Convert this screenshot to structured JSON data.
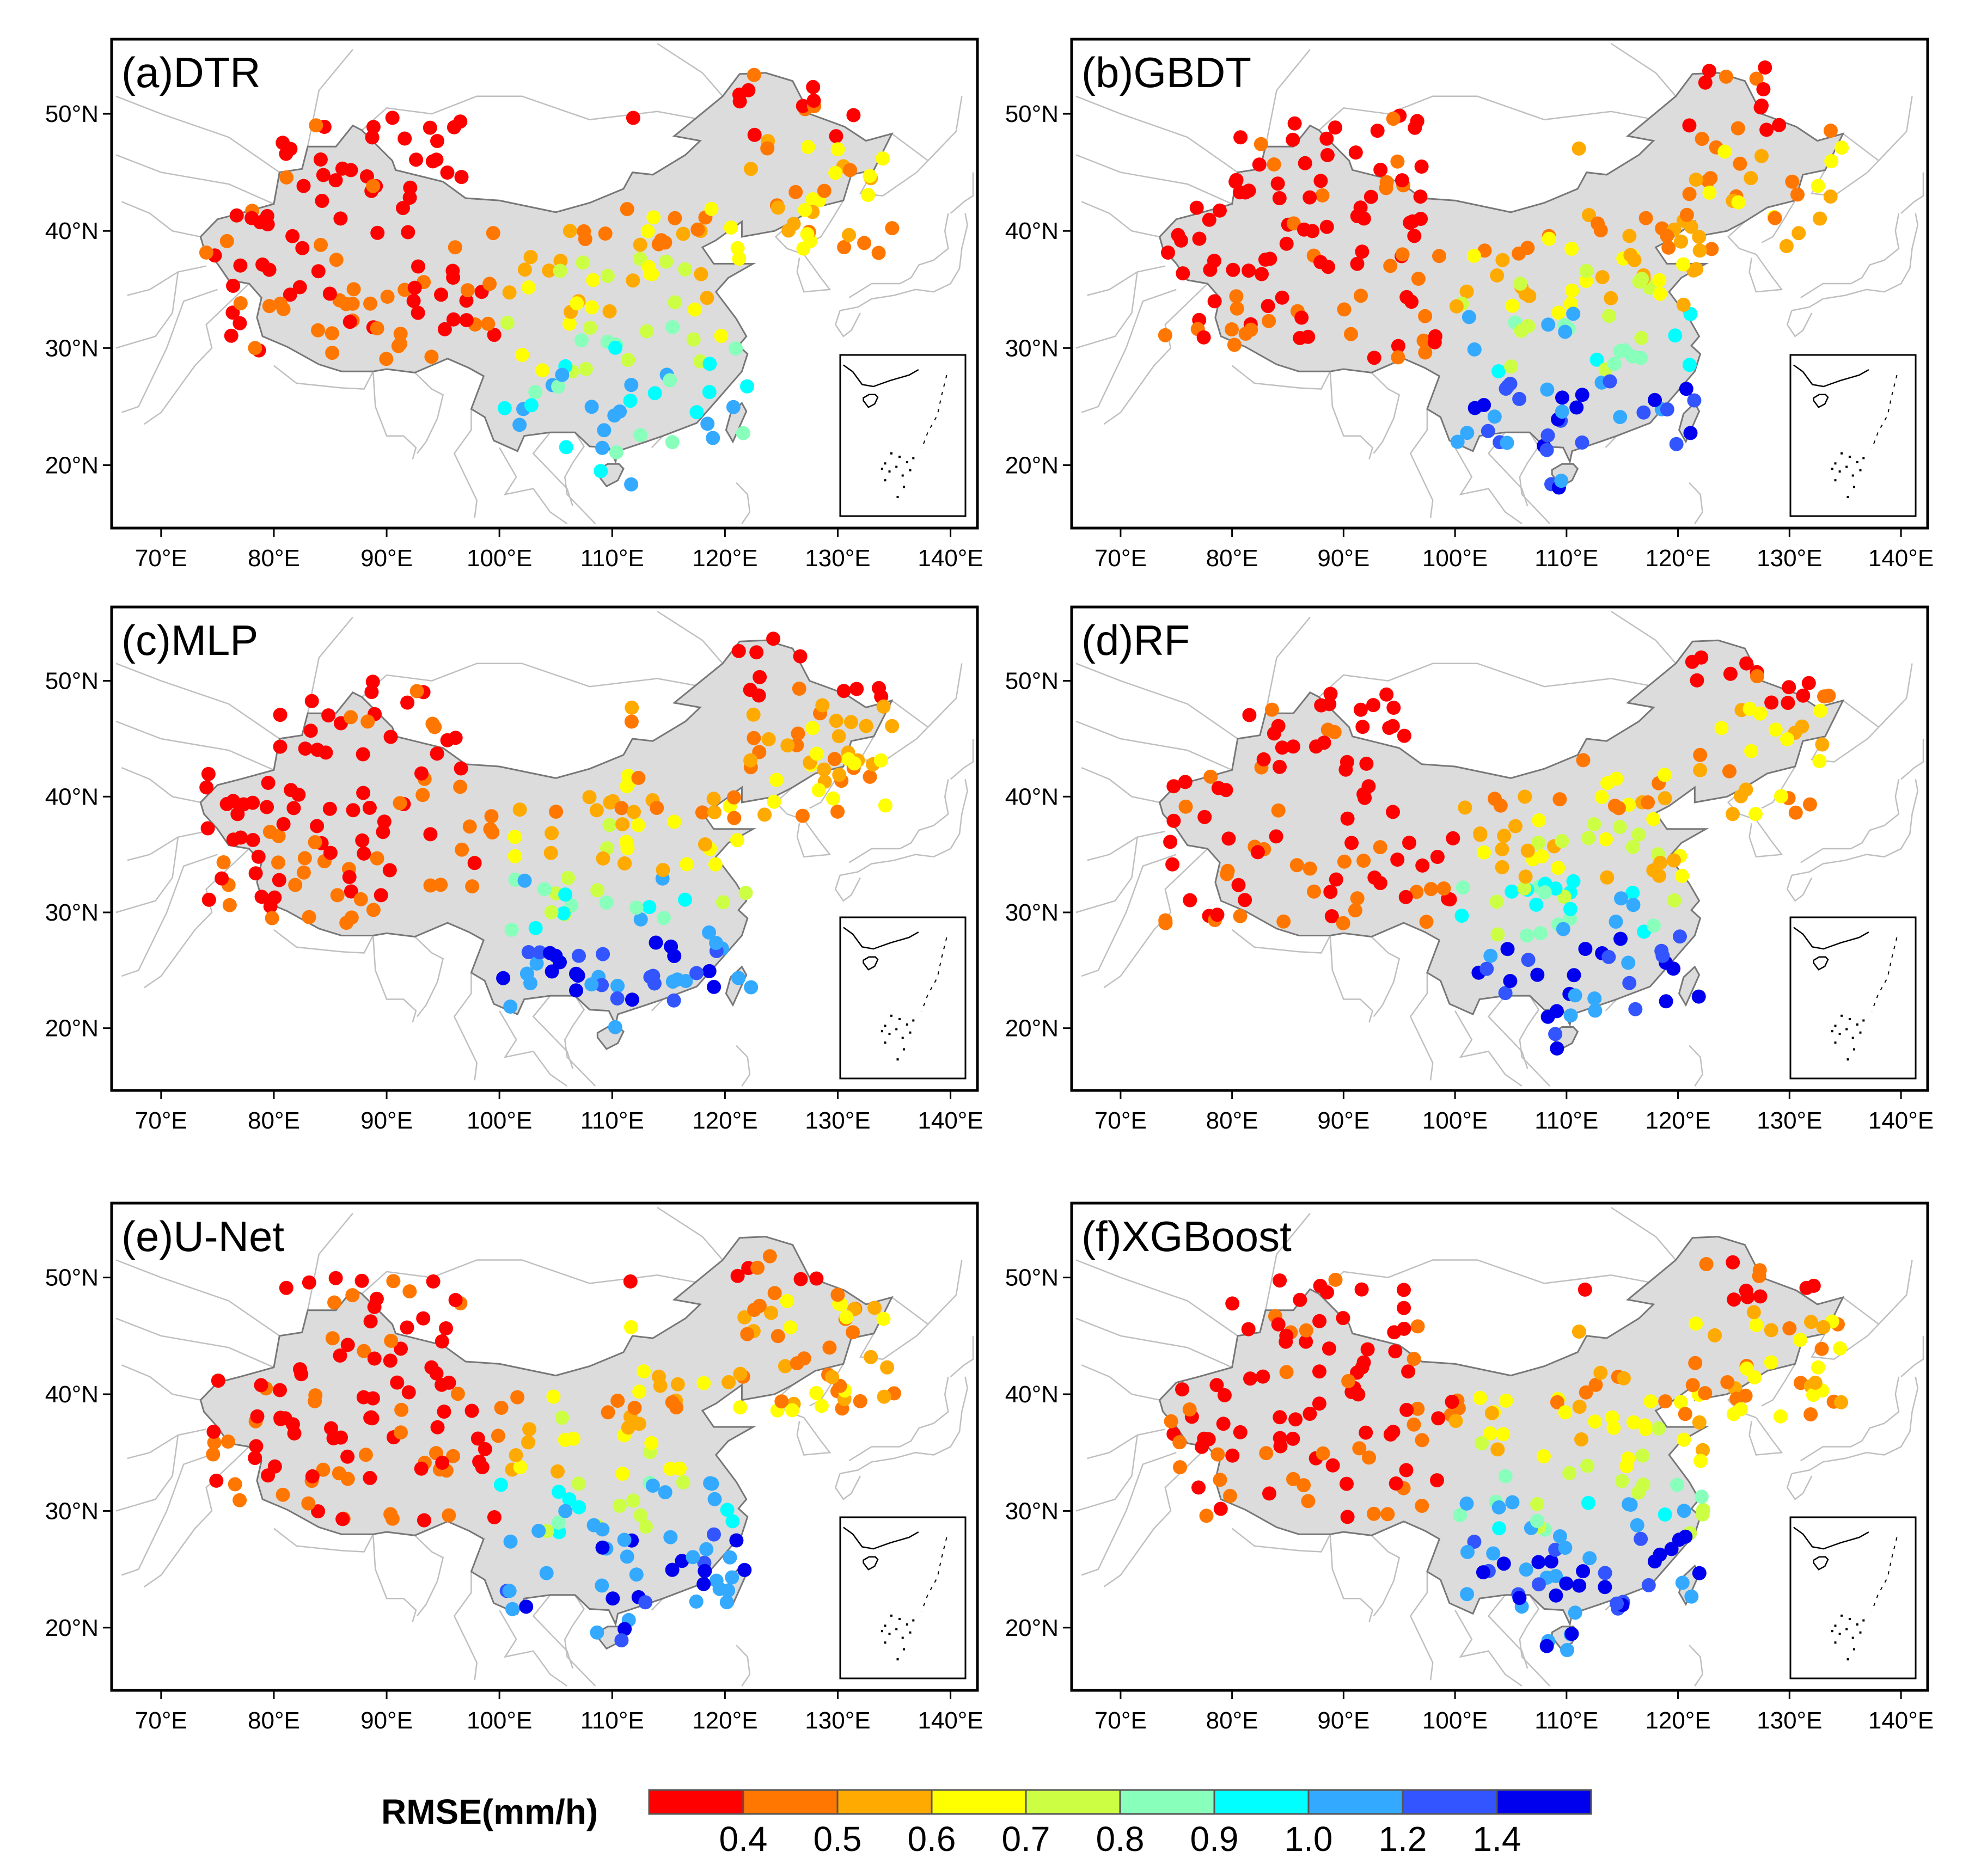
{
  "figure": {
    "panels": [
      {
        "id": "a",
        "title": "(a)DTR"
      },
      {
        "id": "b",
        "title": "(b)GBDT"
      },
      {
        "id": "c",
        "title": "(c)MLP"
      },
      {
        "id": "d",
        "title": "(d)RF"
      },
      {
        "id": "e",
        "title": "(e)U-Net"
      },
      {
        "id": "f",
        "title": "(f)XGBoost"
      }
    ],
    "x_ticks": [
      "70°E",
      "80°E",
      "90°E",
      "100°E",
      "110°E",
      "120°E",
      "130°E",
      "140°E"
    ],
    "y_ticks": [
      "50°N",
      "40°N",
      "30°N",
      "20°N"
    ]
  },
  "colorbar": {
    "title": "RMSE(mm/h)",
    "colors": [
      "#ff0000",
      "#ff7700",
      "#ffaa00",
      "#ffff00",
      "#ccff44",
      "#88ffbb",
      "#00ffff",
      "#33aaff",
      "#3355ff",
      "#0000ee"
    ],
    "labels": [
      "0.4",
      "0.5",
      "0.6",
      "0.7",
      "0.8",
      "0.9",
      "1.0",
      "1.2",
      "1.4"
    ]
  },
  "map_colors": {
    "land_fill": "#dcdcdc",
    "border": "#bfbfbf",
    "china_outline": "#777777"
  }
}
